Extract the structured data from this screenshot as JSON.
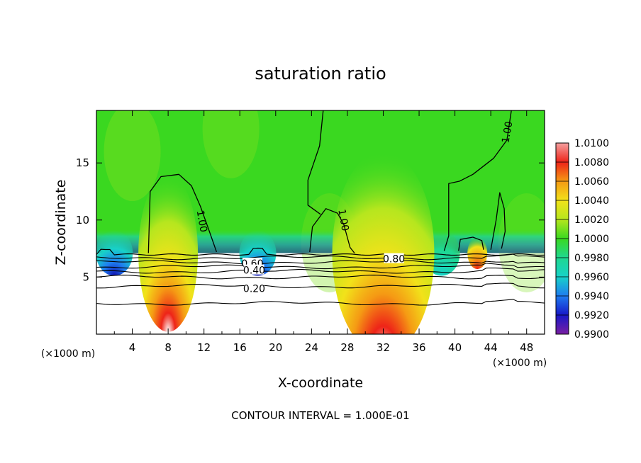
{
  "chart_data": {
    "type": "heatmap",
    "title": "saturation ratio",
    "xlabel": "X-coordinate",
    "ylabel": "Z-coordinate",
    "x_unit": "(×1000 m)",
    "x_unit_right": "(×1000 m)",
    "footer": "CONTOUR INTERVAL = 1.000E-01",
    "xlim": [
      0,
      50
    ],
    "ylim": [
      0,
      19.6
    ],
    "x_ticks": [
      4,
      8,
      12,
      16,
      20,
      24,
      28,
      32,
      36,
      40,
      44,
      48
    ],
    "y_ticks": [
      5,
      10,
      15
    ],
    "colorbar": {
      "levels": [
        0.99,
        0.992,
        0.994,
        0.996,
        0.998,
        1.0,
        1.002,
        1.004,
        1.006,
        1.008,
        1.01
      ],
      "labels": [
        "0.9900",
        "0.9920",
        "0.9940",
        "0.9960",
        "0.9980",
        "1.0000",
        "1.0020",
        "1.0040",
        "1.0060",
        "1.0080",
        "1.0100"
      ],
      "colors": [
        "#7a1fa2",
        "#1818c8",
        "#1e7cf0",
        "#18d2c8",
        "#20d890",
        "#3ad820",
        "#b6e61e",
        "#f2e21a",
        "#f59a14",
        "#ee2418",
        "#f4a0a0"
      ]
    },
    "cloud_base_height": 7.1,
    "contour_labels": [
      {
        "text": "1.00",
        "x": 11.8,
        "z": 9.9
      },
      {
        "text": "1.00",
        "x": 27.6,
        "z": 10.0
      },
      {
        "text": "1.00",
        "x": 45.8,
        "z": 17.7
      },
      {
        "text": "0.80",
        "x": 33.2,
        "z": 6.6
      },
      {
        "text": "0.60",
        "x": 17.4,
        "z": 6.2
      },
      {
        "text": "0.40",
        "x": 17.6,
        "z": 5.6
      },
      {
        "text": "0.20",
        "x": 17.6,
        "z": 4.0
      }
    ],
    "low_level_contours_z": [
      2.7,
      4.2,
      5.0,
      5.5,
      5.9,
      6.3,
      6.7
    ],
    "supersaturated_plumes": [
      {
        "x_center": 8.0,
        "z_top": 14.0,
        "peak": 1.009
      },
      {
        "x_center": 32.0,
        "z_top": 16.0,
        "peak": 1.007
      },
      {
        "x_center": 42.5,
        "z_top": 8.5,
        "peak": 1.006
      }
    ],
    "subsaturated_bands": [
      {
        "x_center": 2.0,
        "z": 8.0,
        "value": 0.992
      },
      {
        "x_center": 18.0,
        "z": 8.0,
        "value": 0.991
      },
      {
        "x_center": 38.5,
        "z": 7.5,
        "value": 0.996
      }
    ]
  }
}
